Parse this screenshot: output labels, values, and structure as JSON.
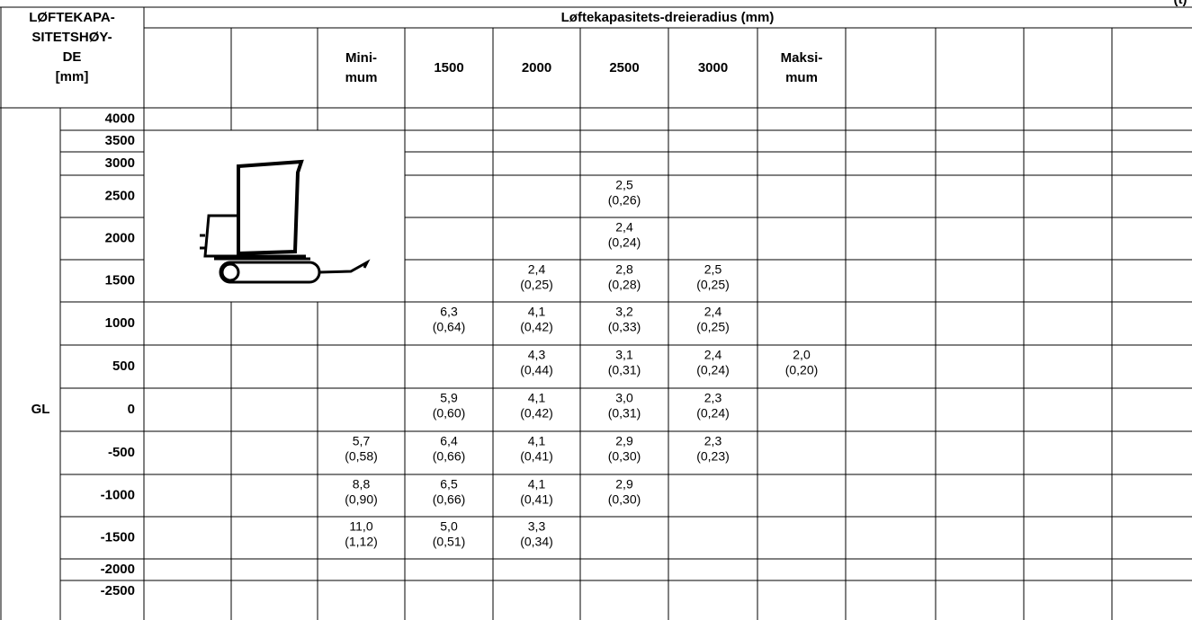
{
  "corner_note": "(t)",
  "header": {
    "row_label": [
      "LØFTEKAPA-",
      "SITETSHØY-",
      "DE",
      "[mm]"
    ],
    "title": "Løftekapasitets-dreieradius (mm)",
    "columns": [
      null,
      null,
      [
        "Mini-",
        "mum"
      ],
      [
        "1500"
      ],
      [
        "2000"
      ],
      [
        "2500"
      ],
      [
        "3000"
      ],
      [
        "Maksi-",
        "mum"
      ],
      null,
      null,
      null,
      null
    ]
  },
  "rows": [
    {
      "height": "4000",
      "cells": []
    },
    {
      "height": "3500",
      "cells": []
    },
    {
      "height": "3000",
      "cells": []
    },
    {
      "height": "2500",
      "cells": [
        {
          "col": 5,
          "value": "2,5",
          "load": "(0,26)"
        }
      ]
    },
    {
      "height": "2000",
      "cells": [
        {
          "col": 5,
          "value": "2,4",
          "load": "(0,24)"
        }
      ]
    },
    {
      "height": "1500",
      "cells": [
        {
          "col": 4,
          "value": "2,4",
          "load": "(0,25)"
        },
        {
          "col": 5,
          "value": "2,8",
          "load": "(0,28)"
        },
        {
          "col": 6,
          "value": "2,5",
          "load": "(0,25)"
        }
      ]
    },
    {
      "height": "1000",
      "cells": [
        {
          "col": 3,
          "value": "6,3",
          "load": "(0,64)"
        },
        {
          "col": 4,
          "value": "4,1",
          "load": "(0,42)"
        },
        {
          "col": 5,
          "value": "3,2",
          "load": "(0,33)"
        },
        {
          "col": 6,
          "value": "2,4",
          "load": "(0,25)"
        }
      ]
    },
    {
      "height": "500",
      "cells": [
        {
          "col": 4,
          "value": "4,3",
          "load": "(0,44)"
        },
        {
          "col": 5,
          "value": "3,1",
          "load": "(0,31)"
        },
        {
          "col": 6,
          "value": "2,4",
          "load": "(0,24)"
        },
        {
          "col": 7,
          "value": "2,0",
          "load": "(0,20)"
        }
      ]
    },
    {
      "height": "0",
      "side_label": "GL",
      "cells": [
        {
          "col": 3,
          "value": "5,9",
          "load": "(0,60)"
        },
        {
          "col": 4,
          "value": "4,1",
          "load": "(0,42)"
        },
        {
          "col": 5,
          "value": "3,0",
          "load": "(0,31)"
        },
        {
          "col": 6,
          "value": "2,3",
          "load": "(0,24)"
        }
      ]
    },
    {
      "height": "-500",
      "cells": [
        {
          "col": 2,
          "value": "5,7",
          "load": "(0,58)"
        },
        {
          "col": 3,
          "value": "6,4",
          "load": "(0,66)"
        },
        {
          "col": 4,
          "value": "4,1",
          "load": "(0,41)"
        },
        {
          "col": 5,
          "value": "2,9",
          "load": "(0,30)"
        },
        {
          "col": 6,
          "value": "2,3",
          "load": "(0,23)"
        }
      ]
    },
    {
      "height": "-1000",
      "cells": [
        {
          "col": 2,
          "value": "8,8",
          "load": "(0,90)"
        },
        {
          "col": 3,
          "value": "6,5",
          "load": "(0,66)"
        },
        {
          "col": 4,
          "value": "4,1",
          "load": "(0,41)"
        },
        {
          "col": 5,
          "value": "2,9",
          "load": "(0,30)"
        }
      ]
    },
    {
      "height": "-1500",
      "cells": [
        {
          "col": 2,
          "value": "11,0",
          "load": "(1,12)"
        },
        {
          "col": 3,
          "value": "5,0",
          "load": "(0,51)"
        },
        {
          "col": 4,
          "value": "3,3",
          "load": "(0,34)"
        }
      ]
    },
    {
      "height": "-2000",
      "cells": []
    },
    {
      "height": "-2500",
      "cells": []
    }
  ]
}
